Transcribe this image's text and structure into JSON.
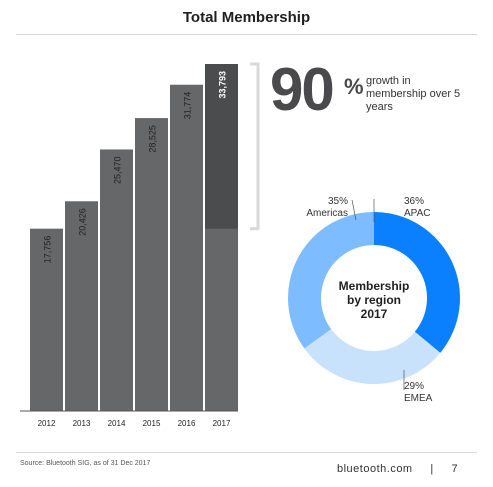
{
  "page": {
    "title": "Total Membership",
    "source": "Source: Bluetooth SIG, as of 31 Dec 2017",
    "footer": "bluetooth.com     |     7"
  },
  "highlight": {
    "percent_value": "90",
    "percent_sign": "%",
    "growth_text": "growth in membership over 5 years"
  },
  "colors": {
    "bar": "#666768",
    "bar_highlight": "#4b4c4d",
    "apac": "#0a80ff",
    "americas": "#7cbcff",
    "emea": "#c9e2fb",
    "bracket": "#d9d9d9"
  },
  "chart_data": [
    {
      "type": "bar",
      "categories": [
        "2012",
        "2013",
        "2014",
        "2015",
        "2016",
        "2017"
      ],
      "values": [
        17756,
        20426,
        25470,
        28525,
        31774,
        33793
      ],
      "value_labels": [
        "17,756",
        "20,426",
        "25,470",
        "28,525",
        "31,774",
        "33,793"
      ],
      "title": "Total Membership",
      "ylim": [
        0,
        35000
      ],
      "grid": false
    },
    {
      "type": "pie",
      "title": "Membership by region 2017",
      "center_lines": [
        "Membership",
        "by region",
        "2017"
      ],
      "slices": [
        {
          "label": "APAC",
          "value": 36,
          "value_text": "36%"
        },
        {
          "label": "EMEA",
          "value": 29,
          "value_text": "29%"
        },
        {
          "label": "Americas",
          "value": 35,
          "value_text": "35%"
        }
      ]
    }
  ]
}
